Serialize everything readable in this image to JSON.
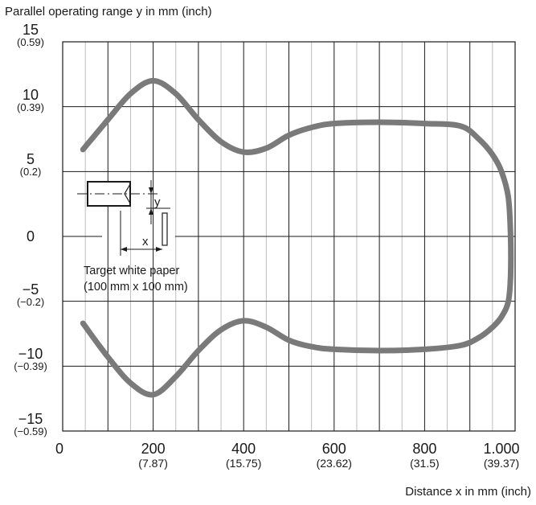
{
  "chart_data": {
    "type": "line",
    "title": "",
    "ylabel": "Parallel operating range y in mm (inch)",
    "xlabel": "Distance x in mm (inch)",
    "xlim": [
      0,
      1000
    ],
    "ylim": [
      -15,
      15
    ],
    "grid": true,
    "y_ticks": [
      {
        "value": 15,
        "label": "15",
        "sub": "(0.59)"
      },
      {
        "value": 10,
        "label": "10",
        "sub": "(0.39)"
      },
      {
        "value": 5,
        "label": "5",
        "sub": "(0.2)"
      },
      {
        "value": 0,
        "label": "0",
        "sub": ""
      },
      {
        "value": -5,
        "label": "−5",
        "sub": "(−0.2)"
      },
      {
        "value": -10,
        "label": "−10",
        "sub": "(−0.39)"
      },
      {
        "value": -15,
        "label": "−15",
        "sub": "(−0.59)"
      }
    ],
    "x_ticks": [
      {
        "value": 0,
        "label": "0",
        "sub": ""
      },
      {
        "value": 200,
        "label": "200",
        "sub": "(7.87)"
      },
      {
        "value": 400,
        "label": "400",
        "sub": "(15.75)"
      },
      {
        "value": 600,
        "label": "600",
        "sub": "(23.62)"
      },
      {
        "value": 800,
        "label": "800",
        "sub": "(31.5)"
      },
      {
        "value": 1000,
        "label": "1.000",
        "sub": "(39.37)"
      }
    ],
    "series": [
      {
        "color": "#7a7a7a",
        "x": [
          45,
          100,
          150,
          200,
          250,
          300,
          350,
          400,
          450,
          500,
          550,
          600,
          700,
          800,
          880,
          920,
          950,
          970,
          985,
          990,
          990,
          985,
          970,
          950,
          920,
          880,
          800,
          700,
          600,
          550,
          500,
          450,
          400,
          350,
          300,
          250,
          200,
          150,
          100,
          45
        ],
        "y": [
          6.7,
          9.0,
          11.0,
          12.0,
          11.0,
          9.0,
          7.3,
          6.5,
          6.8,
          7.8,
          8.4,
          8.7,
          8.8,
          8.7,
          8.5,
          7.5,
          6.3,
          5.0,
          3.0,
          0,
          -3.0,
          -5.0,
          -6.2,
          -7.0,
          -7.8,
          -8.4,
          -8.7,
          -8.8,
          -8.7,
          -8.5,
          -8.0,
          -7.0,
          -6.5,
          -7.2,
          -8.8,
          -10.8,
          -12.2,
          -11.3,
          -9.3,
          -6.7
        ]
      }
    ]
  },
  "diagram": {
    "note_line1": "Target white paper",
    "note_line2": "(100 mm x 100 mm)",
    "y_symbol": "y",
    "x_symbol": "x"
  }
}
